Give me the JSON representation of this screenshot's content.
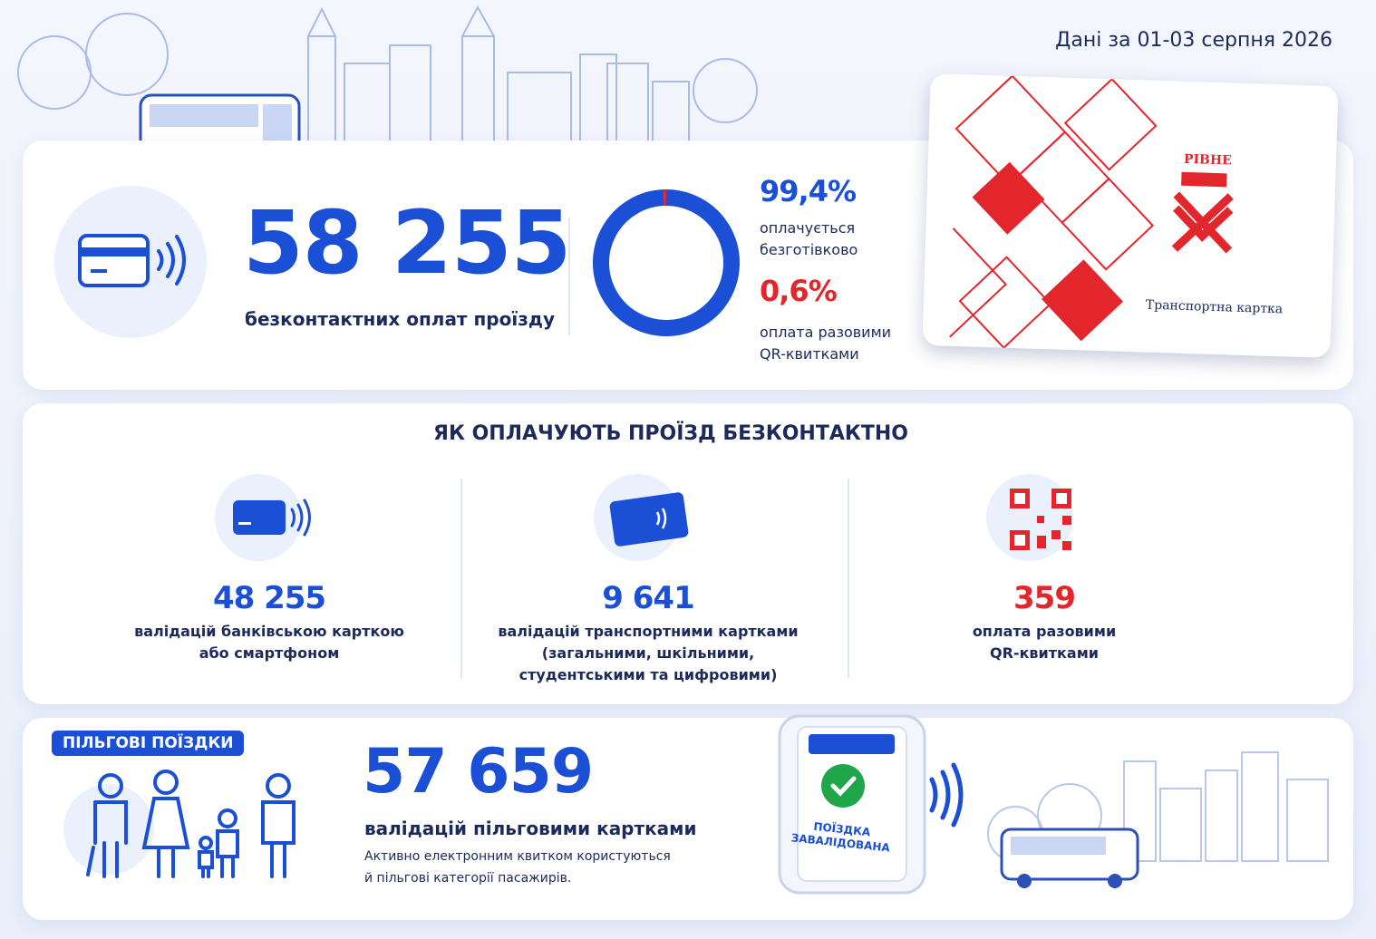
{
  "header": {
    "date": "Дані за 01-03 серпня 2026"
  },
  "summary": {
    "total": "58 255",
    "label": "безконтактних оплат проїзду"
  },
  "chart_data": {
    "type": "donut",
    "categories": [
      "оплачується\nбезготівково",
      "оплата разовими\nQR-квитками"
    ],
    "values": [
      99.4,
      0.6
    ],
    "value_labels": [
      "99,4%",
      "0,6%"
    ],
    "colors": [
      "#1a4fd6",
      "#e3262b"
    ]
  },
  "card": {
    "city": "РІВНЕ",
    "name": "Транспортна картка"
  },
  "methods": {
    "title": "ЯК ОПЛАЧУЮТЬ ПРОЇЗД БЕЗКОНТАКТНО",
    "items": [
      {
        "value": "48 255",
        "label": "валідацій банківською карткою\nабо смартфоном"
      },
      {
        "value": "9 641",
        "label": "валідацій транспортними картками\n(загальними, шкільними,\nстудентськими та цифровими)"
      },
      {
        "value": "359",
        "label": "оплата разовими\nQR-квитками"
      }
    ]
  },
  "benefits": {
    "badge": "ПІЛЬГОВІ ПОЇЗДКИ",
    "value": "57 659",
    "label": "валідацій пільговими картками",
    "note": "Активно електронним квитком користуються\nй пільгові категорії пасажирів.",
    "terminal": "ПОЇЗДКА\nЗАВАЛІДОВАНА"
  }
}
